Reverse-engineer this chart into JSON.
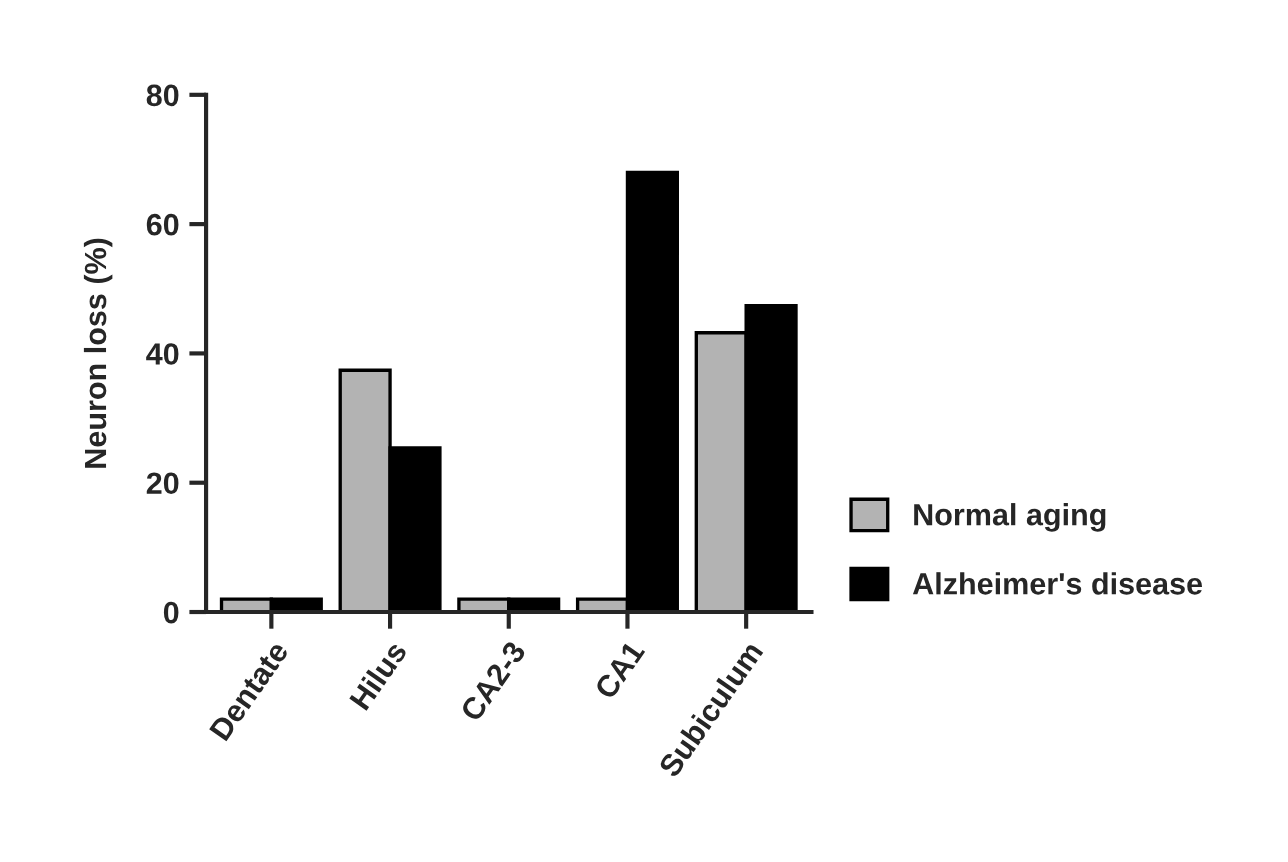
{
  "chart_data": {
    "type": "bar",
    "ylabel": "Neuron loss (%)",
    "categories": [
      "Dentate",
      "Hilus",
      "CA2-3",
      "CA1",
      "Subiculum"
    ],
    "series": [
      {
        "name": "Normal aging",
        "color": "#b3b3b3",
        "values": [
          2,
          37.4,
          2,
          2,
          43.2
        ]
      },
      {
        "name": "Alzheimer's disease",
        "color": "#000000",
        "values": [
          2,
          25.4,
          2,
          68,
          47.4
        ]
      }
    ],
    "ylim": [
      0,
      80
    ],
    "yticks": [
      0,
      20,
      40,
      60,
      80
    ],
    "grid": false,
    "legend": "right"
  }
}
